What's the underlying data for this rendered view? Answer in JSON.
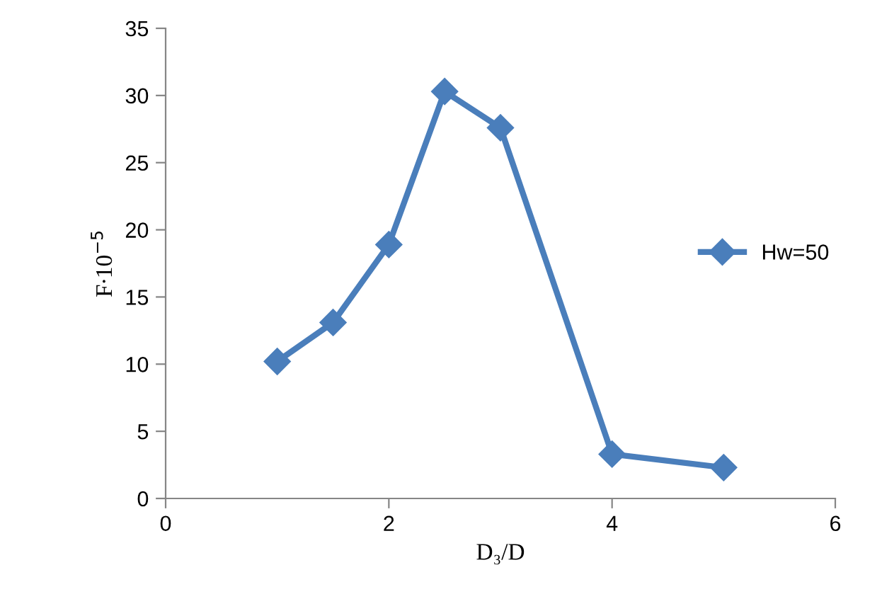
{
  "chart_data": {
    "type": "line",
    "xlabel": "D₃/D",
    "ylabel": "F∙10$^{−5}$",
    "x": [
      1,
      1.5,
      2,
      2.5,
      3,
      4,
      5
    ],
    "series": [
      {
        "name": "Hw=50",
        "color": "#4a7ebb",
        "values": [
          10.2,
          13.1,
          18.9,
          30.3,
          27.6,
          3.3,
          2.3
        ]
      }
    ],
    "xlim": [
      0,
      6
    ],
    "xticks": [
      0,
      2,
      4,
      6
    ],
    "ylim": [
      0,
      35
    ],
    "yticks": [
      0,
      5,
      10,
      15,
      20,
      25,
      30,
      35
    ],
    "grid": false,
    "legend": "right",
    "marker": "diamond",
    "line_style": "solid"
  }
}
